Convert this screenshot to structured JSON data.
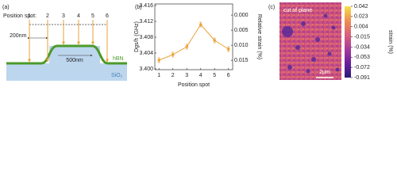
{
  "schematic": {
    "panel_label": "(a)",
    "position_label": "Position spot:",
    "spots": [
      "1",
      "2",
      "3",
      "4",
      "5",
      "6"
    ],
    "width_label": "200nm",
    "gap_label": "500nm",
    "layer_label": "hBN",
    "substrate_label": "SiO₂"
  },
  "chart_data": [
    {
      "type": "line",
      "panel_label": "(b)",
      "xlabel": "Position spot",
      "ylabel": "Dgs/h (GHz)",
      "y2label": "Relative strain (%)",
      "x": [
        1,
        2,
        3,
        4,
        5,
        6
      ],
      "xlim": [
        0.7,
        6.3
      ],
      "xticks": [
        1,
        2,
        3,
        4,
        5,
        6
      ],
      "ylim": [
        3.3998,
        3.4164
      ],
      "yticks": [
        {
          "value": 3.4,
          "label": "3.400"
        },
        3.404,
        3.408,
        3.412,
        3.416
      ],
      "y2lim": [
        0.0181,
        -0.0037
      ],
      "y2ticks": [
        {
          "value": 0,
          "label": "0.000"
        },
        0.005,
        {
          "value": 0.01,
          "label": "0.010"
        },
        0.015
      ],
      "series": [
        {
          "color": "#eba33c",
          "values": [
            3.4022,
            3.4036,
            3.4056,
            3.4112,
            3.4072,
            3.405
          ],
          "errors": [
            0.0006,
            0.0006,
            0.0006,
            0.0006,
            0.0006,
            0.0006
          ]
        }
      ]
    },
    {
      "type": "heatmap",
      "panel_label": "(c)",
      "annotation": "cut of plane",
      "scale_bar": "2μm",
      "colorbar_label": "strain (%)",
      "clim": [
        -0.091,
        0.042
      ],
      "cticks": [
        0.042,
        0.023,
        0.004,
        -0.015,
        -0.034,
        -0.053,
        -0.072,
        -0.091
      ],
      "colormap": [
        "#2a1b7a",
        "#6a1f9e",
        "#a83a9a",
        "#d9607a",
        "#f08f52",
        "#f6e04c"
      ]
    }
  ]
}
